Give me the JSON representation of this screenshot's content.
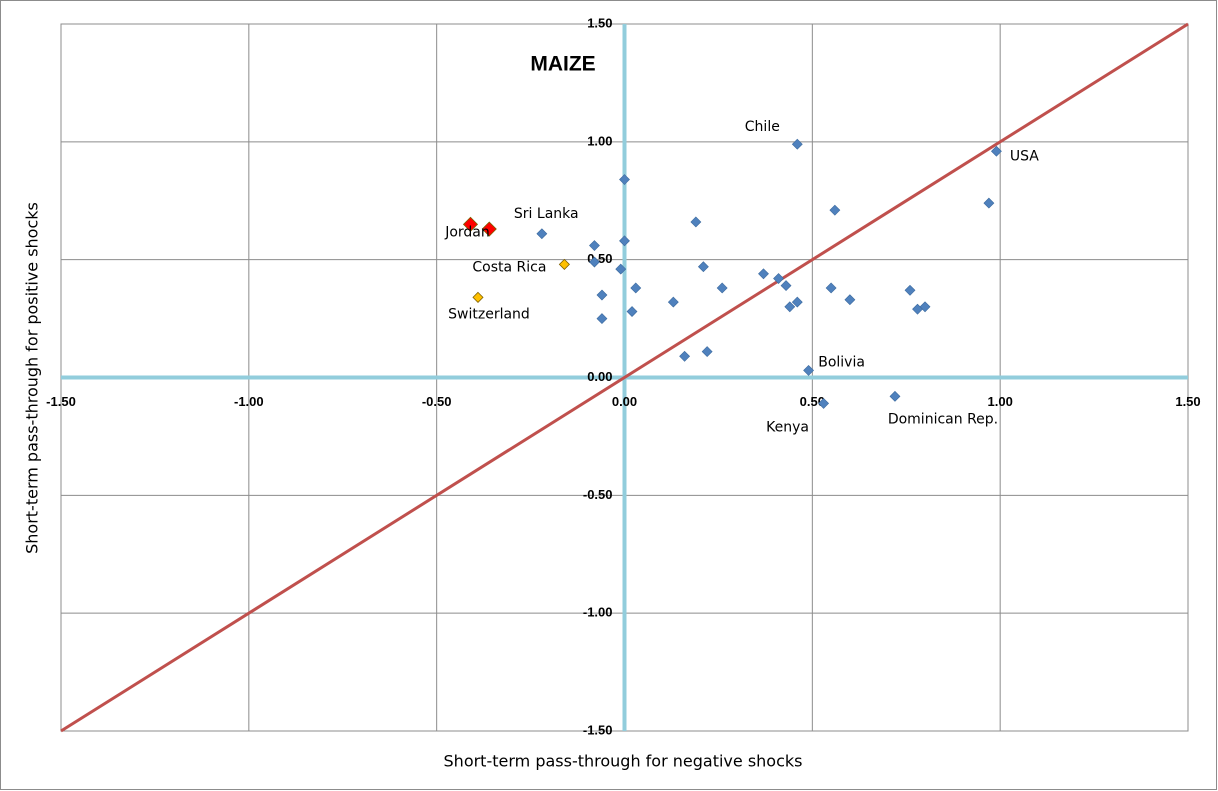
{
  "chart_data": {
    "type": "scatter",
    "title": "MAIZE",
    "x_label": "Short-term pass-through for negative shocks",
    "y_label": "Short-term pass-through for positive shocks",
    "xlim": [
      -1.5,
      1.5
    ],
    "ylim": [
      -1.5,
      1.5
    ],
    "xticks": [
      {
        "value": -1.5,
        "label": "-1.50"
      },
      {
        "value": -1,
        "label": "-1.00"
      },
      {
        "value": -0.5,
        "label": "-0.50"
      },
      {
        "value": 0,
        "label": "0.00"
      },
      {
        "value": 0.5,
        "label": "0.50"
      },
      {
        "value": 1,
        "label": "1.00"
      },
      {
        "value": 1.5,
        "label": "1.50"
      }
    ],
    "yticks": [
      {
        "value": -1.5,
        "label": "-1.50"
      },
      {
        "value": -1,
        "label": "-1.00"
      },
      {
        "value": -0.5,
        "label": "-0.50"
      },
      {
        "value": 0,
        "label": "0.00"
      },
      {
        "value": 0.5,
        "label": "0.50"
      },
      {
        "value": 1,
        "label": "1.00"
      },
      {
        "value": 1.5,
        "label": "1.50"
      }
    ],
    "grid": true,
    "diagonal_color": "#c0504d",
    "zero_axes_color": "#92cddc",
    "series": [
      {
        "color": "#4f81bd",
        "x": [
          0.46,
          0.99,
          0.0,
          0.56,
          0.97,
          0.19,
          -0.22,
          -0.08,
          0.0,
          -0.08,
          -0.01,
          0.21,
          0.37,
          0.41,
          0.43,
          0.55,
          0.03,
          0.26,
          0.76,
          -0.06,
          0.6,
          0.13,
          0.46,
          0.44,
          0.8,
          0.78,
          0.02,
          -0.06,
          0.22,
          0.16,
          0.49,
          0.72,
          0.53
        ],
        "y": [
          0.99,
          0.96,
          0.84,
          0.71,
          0.74,
          0.66,
          0.61,
          0.56,
          0.58,
          0.49,
          0.46,
          0.47,
          0.44,
          0.42,
          0.39,
          0.38,
          0.38,
          0.38,
          0.37,
          0.35,
          0.33,
          0.32,
          0.32,
          0.3,
          0.3,
          0.29,
          0.28,
          0.25,
          0.11,
          0.09,
          0.03,
          -0.08,
          -0.11
        ],
        "labels": [
          "Chile",
          "USA",
          null,
          null,
          null,
          null,
          null,
          null,
          null,
          null,
          null,
          null,
          null,
          null,
          null,
          null,
          null,
          null,
          null,
          null,
          null,
          null,
          null,
          null,
          null,
          null,
          null,
          null,
          null,
          null,
          "Bolivia",
          "Dominican Rep.",
          "Kenya"
        ]
      },
      {
        "color": "#ff0000",
        "x": [
          -0.41,
          -0.36
        ],
        "y": [
          0.65,
          0.63
        ],
        "labels": [
          "Jordan",
          "Sri Lanka"
        ]
      },
      {
        "color": "#ffc000",
        "x": [
          -0.16,
          -0.39
        ],
        "y": [
          0.48,
          0.34
        ],
        "labels": [
          "Costa Rica",
          "Switzerland"
        ]
      }
    ]
  }
}
